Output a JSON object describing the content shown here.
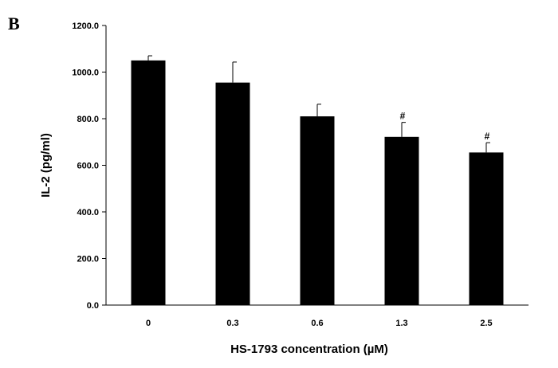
{
  "panel_label": "B",
  "chart_data": {
    "type": "bar",
    "categories": [
      "0",
      "0.3",
      "0.6",
      "1.3",
      "2.5"
    ],
    "values": [
      1050,
      955,
      810,
      722,
      655
    ],
    "errors": [
      20,
      88,
      52,
      62,
      42
    ],
    "annotations": [
      "",
      "",
      "",
      "#",
      "#"
    ],
    "ylabel": "IL-2 (pg/ml)",
    "xlabel": "HS-1793 concentration (µM)",
    "ylim": [
      0,
      1200
    ],
    "yticks": [
      "0.0",
      "200.0",
      "400.0",
      "600.0",
      "800.0",
      "1000.0",
      "1200.0"
    ],
    "bar_color": "#000000",
    "grid": false
  }
}
